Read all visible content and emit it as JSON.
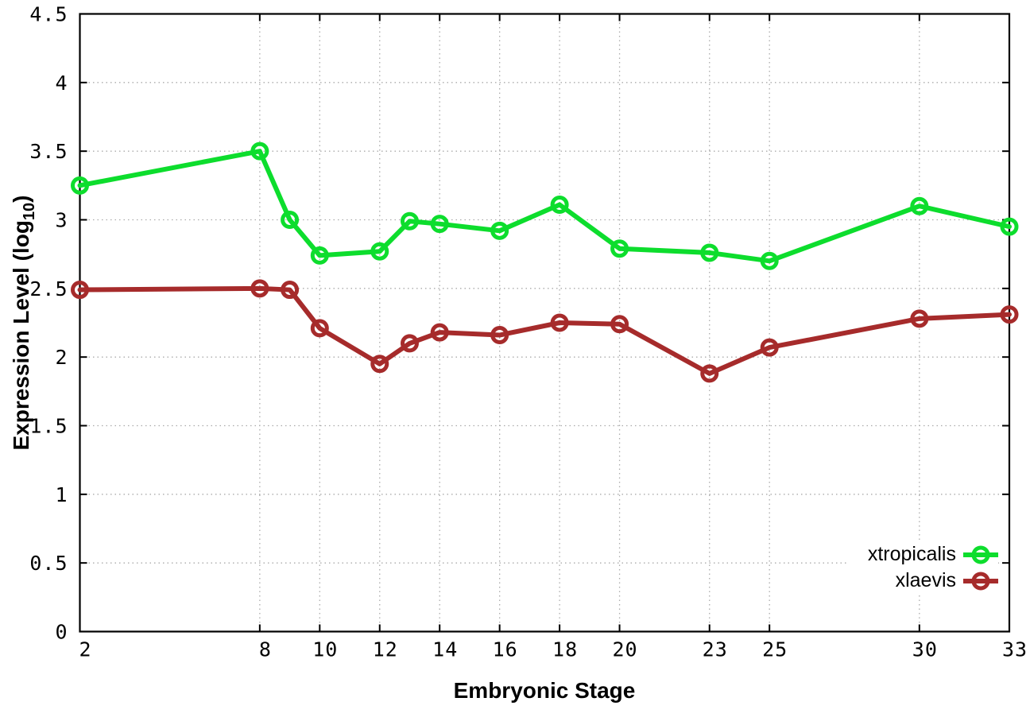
{
  "chart_data": {
    "type": "line",
    "xlabel": "Embryonic Stage",
    "ylabel_parts": {
      "main": "Expression Level (log",
      "sub": "10",
      "close": ")"
    },
    "x": [
      2,
      8,
      9,
      10,
      12,
      13,
      14,
      16,
      18,
      20,
      23,
      25,
      30,
      33
    ],
    "series": [
      {
        "name": "xtropicalis",
        "color": "#0ddd2d",
        "values": [
          3.25,
          3.5,
          3.0,
          2.74,
          2.77,
          2.99,
          2.97,
          2.92,
          3.11,
          2.79,
          2.76,
          2.7,
          3.1,
          2.95
        ]
      },
      {
        "name": "xlaevis",
        "color": "#a62b2b",
        "values": [
          2.49,
          2.5,
          2.49,
          2.21,
          1.95,
          2.1,
          2.18,
          2.16,
          2.25,
          2.24,
          1.88,
          2.07,
          2.28,
          2.31
        ]
      }
    ],
    "xlim": [
      2,
      33
    ],
    "ylim": [
      0,
      4.5
    ],
    "x_ticks": [
      2,
      8,
      10,
      12,
      14,
      16,
      18,
      20,
      23,
      25,
      30,
      33
    ],
    "x_tick_labels": [
      "2",
      "8",
      "10",
      "12",
      "14",
      "16",
      "18",
      "20",
      "23",
      "25",
      "30",
      "33"
    ],
    "y_ticks": [
      0,
      0.5,
      1,
      1.5,
      2,
      2.5,
      3,
      3.5,
      4,
      4.5
    ],
    "y_tick_labels": [
      "0",
      "0.5",
      "1",
      "1.5",
      "2",
      "2.5",
      "3",
      "3.5",
      "4",
      "4.5"
    ],
    "grid": true,
    "legend_position": "bottom-right",
    "marker": "open-circle",
    "axis_color": "#000000",
    "grid_color": "#ababab",
    "background": "#ffffff"
  }
}
